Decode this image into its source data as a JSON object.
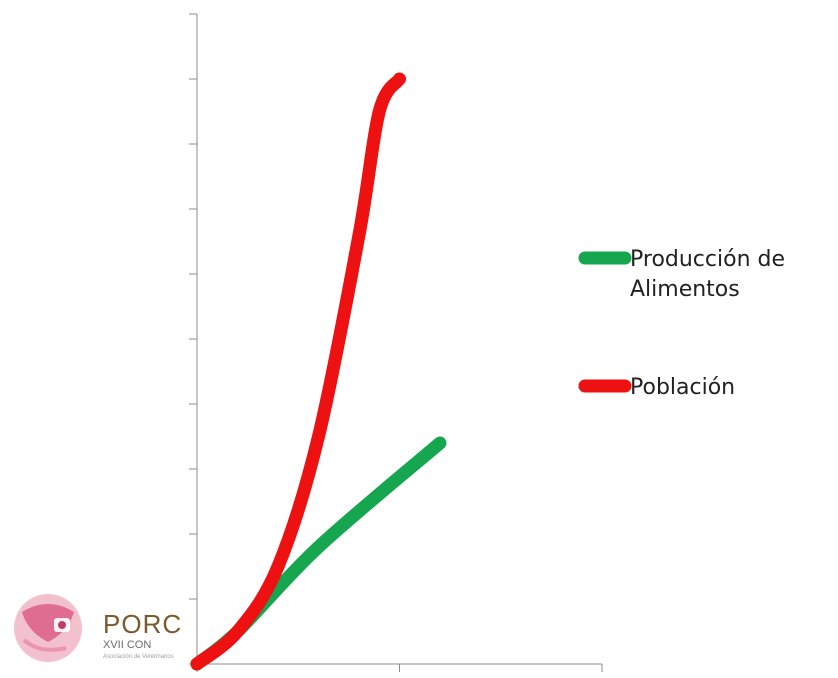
{
  "chart_data": {
    "type": "line",
    "title": "",
    "xlabel": "",
    "ylabel": "",
    "x_tick_labels": [],
    "y_tick_labels": [],
    "xlim": [
      0,
      2
    ],
    "ylim": [
      0,
      10
    ],
    "grid": false,
    "legend_position": "right",
    "series": [
      {
        "name": "Producción de Alimentos",
        "color": "#17a650",
        "x": [
          0,
          0.2,
          0.6,
          1.2
        ],
        "y": [
          0,
          0.5,
          1.8,
          3.4
        ]
      },
      {
        "name": "Población",
        "color": "#ee1111",
        "x": [
          0,
          0.2,
          0.4,
          0.6,
          0.8,
          0.9,
          1.0
        ],
        "y": [
          0,
          0.5,
          1.5,
          3.5,
          6.6,
          8.5,
          9.0
        ]
      }
    ],
    "legend": {
      "lines": [
        [
          "Producción de",
          "Alimentos"
        ],
        [
          "Población"
        ]
      ]
    }
  },
  "logo": {
    "name": "PORC",
    "subtitle": "XVII CON",
    "tagline": "Asociación de Veterinarios"
  }
}
